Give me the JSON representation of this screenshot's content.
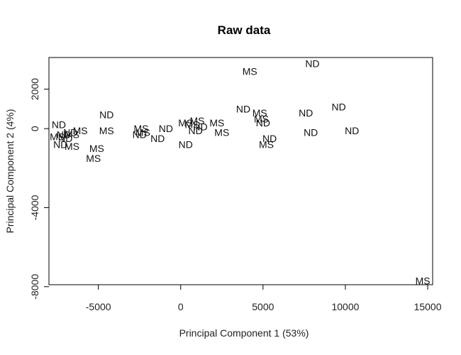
{
  "chart_data": {
    "type": "scatter",
    "title": "Raw data",
    "xlabel": "Principal Component 1 (53%)",
    "ylabel": "Principal Component 2 (4%)",
    "xlim": [
      -8000,
      15300
    ],
    "ylim": [
      -7900,
      3600
    ],
    "xticks": [
      -5000,
      0,
      5000,
      10000,
      15000
    ],
    "xtick_labels": [
      "-5000",
      "0",
      "5000",
      "10000",
      "15000"
    ],
    "yticks": [
      -8000,
      -4000,
      0,
      2000
    ],
    "ytick_labels": [
      "-8000",
      "-4000",
      "0",
      "2000"
    ],
    "grid": false,
    "legend": "none",
    "points": [
      {
        "x": 8000,
        "y": 3300,
        "label": "ND"
      },
      {
        "x": 4200,
        "y": 2900,
        "label": "MS"
      },
      {
        "x": 3800,
        "y": 1000,
        "label": "ND"
      },
      {
        "x": 4800,
        "y": 800,
        "label": "MS"
      },
      {
        "x": 9600,
        "y": 1100,
        "label": "ND"
      },
      {
        "x": 7600,
        "y": 800,
        "label": "ND"
      },
      {
        "x": 4900,
        "y": 500,
        "label": "MS"
      },
      {
        "x": 5000,
        "y": 300,
        "label": "ND"
      },
      {
        "x": 1000,
        "y": 400,
        "label": "MS"
      },
      {
        "x": 300,
        "y": 300,
        "label": "MS"
      },
      {
        "x": 2200,
        "y": 300,
        "label": "MS"
      },
      {
        "x": 700,
        "y": 200,
        "label": "MS"
      },
      {
        "x": 1200,
        "y": 100,
        "label": "ND"
      },
      {
        "x": -900,
        "y": 0,
        "label": "ND"
      },
      {
        "x": 900,
        "y": -100,
        "label": "ND"
      },
      {
        "x": 2500,
        "y": -200,
        "label": "MS"
      },
      {
        "x": 5400,
        "y": -500,
        "label": "ND"
      },
      {
        "x": 7900,
        "y": -200,
        "label": "ND"
      },
      {
        "x": 10400,
        "y": -100,
        "label": "ND"
      },
      {
        "x": 5200,
        "y": -800,
        "label": "MS"
      },
      {
        "x": 300,
        "y": -800,
        "label": "ND"
      },
      {
        "x": -1400,
        "y": -500,
        "label": "ND"
      },
      {
        "x": -2400,
        "y": 0,
        "label": "MS"
      },
      {
        "x": -2500,
        "y": -300,
        "label": "ND"
      },
      {
        "x": -2300,
        "y": -200,
        "label": "MS"
      },
      {
        "x": -4500,
        "y": 700,
        "label": "ND"
      },
      {
        "x": -4500,
        "y": -100,
        "label": "MS"
      },
      {
        "x": -6100,
        "y": -100,
        "label": "MS"
      },
      {
        "x": -7400,
        "y": 200,
        "label": "ND"
      },
      {
        "x": -6700,
        "y": -200,
        "label": "ND"
      },
      {
        "x": -7100,
        "y": -300,
        "label": "ND"
      },
      {
        "x": -6600,
        "y": -300,
        "label": "MS"
      },
      {
        "x": -7500,
        "y": -400,
        "label": "MS"
      },
      {
        "x": -7000,
        "y": -500,
        "label": "ND"
      },
      {
        "x": -7300,
        "y": -800,
        "label": "ND"
      },
      {
        "x": -6600,
        "y": -900,
        "label": "MS"
      },
      {
        "x": -5100,
        "y": -1000,
        "label": "MS"
      },
      {
        "x": -5300,
        "y": -1500,
        "label": "MS"
      },
      {
        "x": 14700,
        "y": -7700,
        "label": "MS"
      }
    ]
  }
}
